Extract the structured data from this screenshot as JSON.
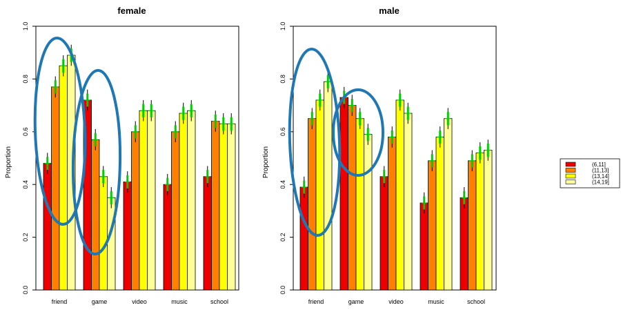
{
  "chart_data": [
    {
      "type": "bar",
      "title": "female",
      "ylabel": "Proportion",
      "xlabel": "",
      "ylim": [
        0,
        1
      ],
      "yticks": [
        "0.0",
        "0.2",
        "0.4",
        "0.6",
        "0.8",
        "1.0"
      ],
      "categories": [
        "friend",
        "game",
        "video",
        "music",
        "school"
      ],
      "series": [
        {
          "name": "(6,11]",
          "values": [
            0.48,
            0.72,
            0.41,
            0.4,
            0.43
          ]
        },
        {
          "name": "(11,13]",
          "values": [
            0.77,
            0.57,
            0.6,
            0.6,
            0.64
          ]
        },
        {
          "name": "(13,14]",
          "values": [
            0.85,
            0.43,
            0.68,
            0.67,
            0.63
          ]
        },
        {
          "name": "(14,19]",
          "values": [
            0.89,
            0.35,
            0.68,
            0.68,
            0.63
          ]
        }
      ],
      "annotations": [
        "ellipse around friend group",
        "ellipse around game group"
      ]
    },
    {
      "type": "bar",
      "title": "male",
      "ylabel": "Proportion",
      "xlabel": "",
      "ylim": [
        0,
        1
      ],
      "yticks": [
        "0.0",
        "0.2",
        "0.4",
        "0.6",
        "0.8",
        "1.0"
      ],
      "categories": [
        "friend",
        "game",
        "video",
        "music",
        "school"
      ],
      "series": [
        {
          "name": "(6,11]",
          "values": [
            0.39,
            0.73,
            0.43,
            0.33,
            0.35
          ]
        },
        {
          "name": "(11,13]",
          "values": [
            0.65,
            0.7,
            0.58,
            0.49,
            0.49
          ]
        },
        {
          "name": "(13,14]",
          "values": [
            0.72,
            0.65,
            0.72,
            0.58,
            0.52
          ]
        },
        {
          "name": "(14,19]",
          "values": [
            0.79,
            0.59,
            0.67,
            0.65,
            0.53
          ]
        }
      ],
      "annotations": [
        "ellipse around friend group",
        "ellipse around game group"
      ]
    }
  ],
  "legend": {
    "entries": [
      "(6,11]",
      "(11,13]",
      "(13,14]",
      "(14,19]"
    ],
    "colors": [
      "#ee0000",
      "#ff8000",
      "#ffff00",
      "#ffff99"
    ]
  },
  "style": {
    "errorbar_color": "#00cc00",
    "ellipse_color": "#1f78b4"
  }
}
